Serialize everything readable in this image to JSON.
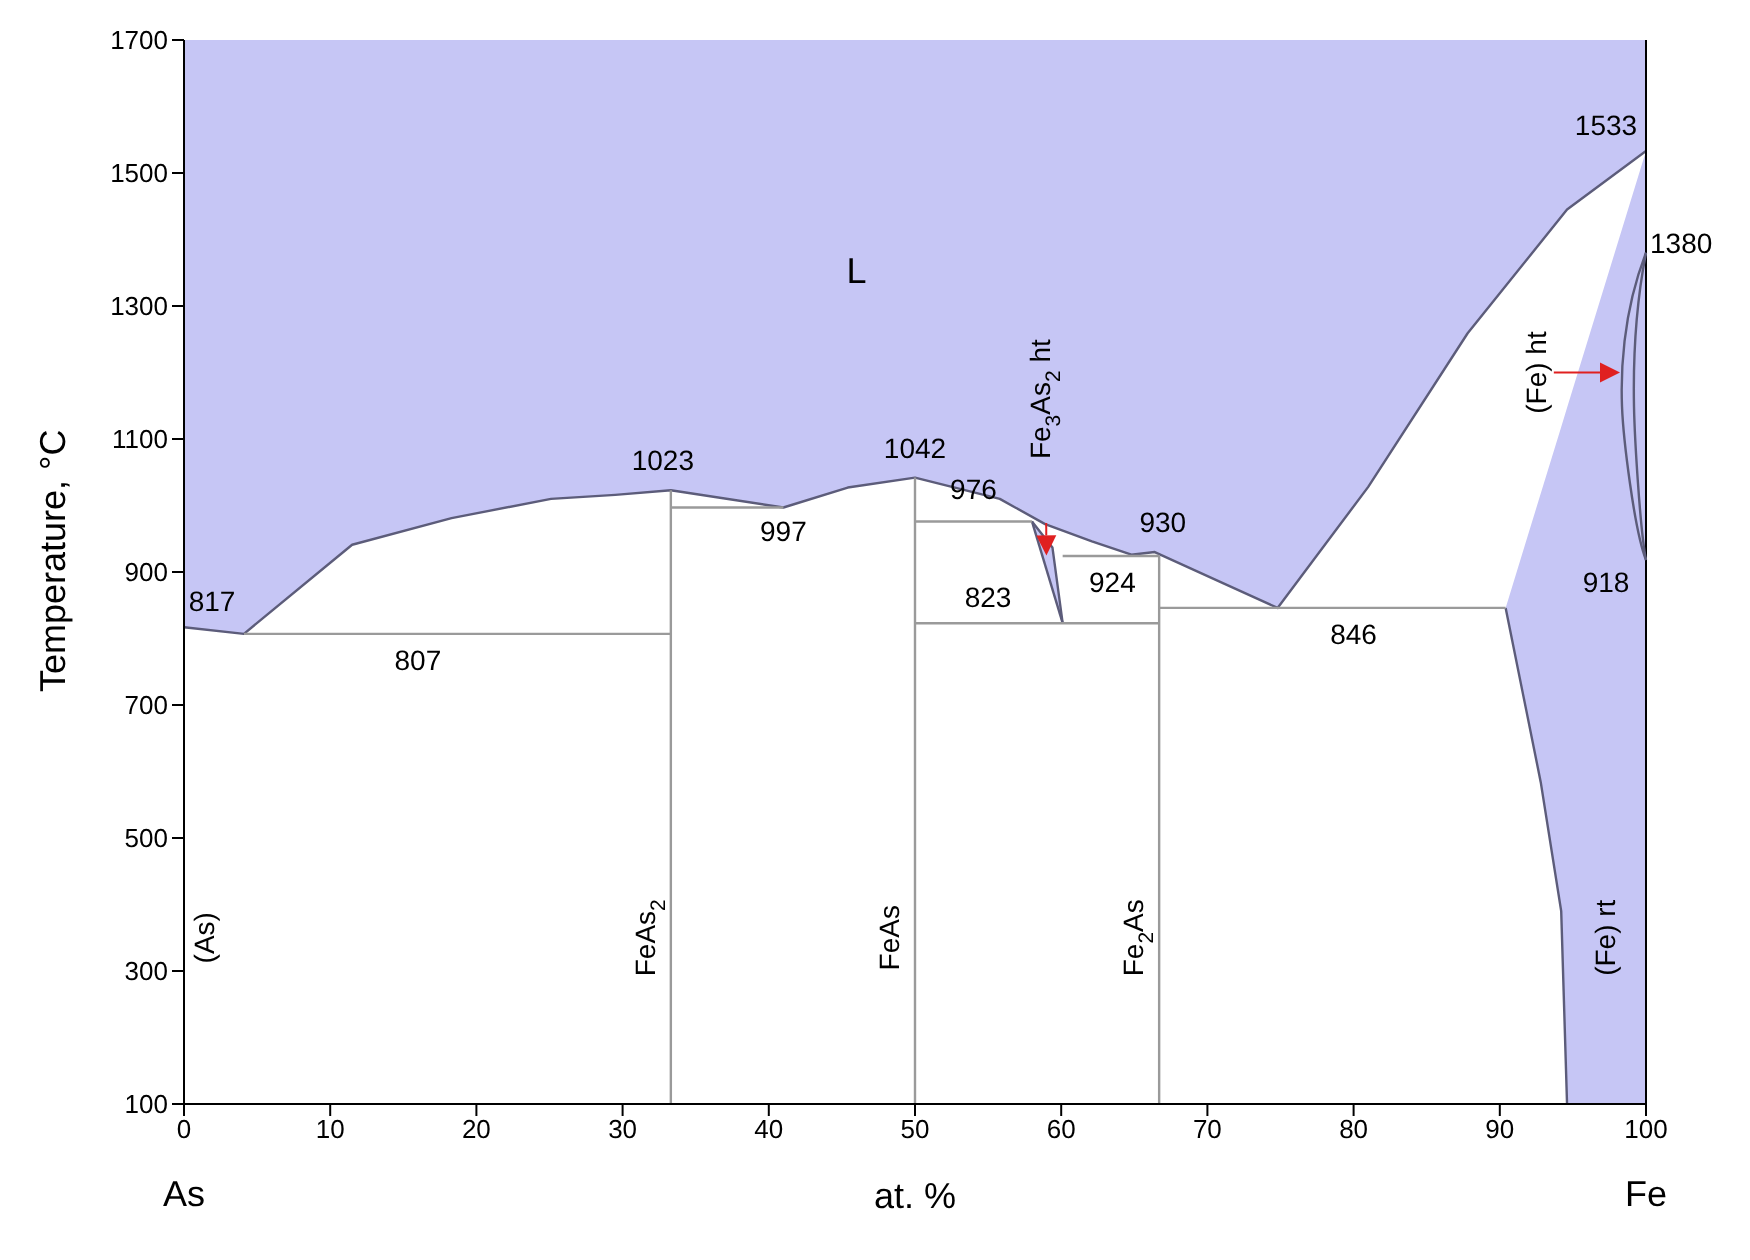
{
  "chart_data": {
    "type": "line",
    "xlabel": "at. %",
    "ylabel": "Temperature, °C",
    "xlim": [
      0,
      100
    ],
    "xticks": [
      0,
      10,
      20,
      30,
      40,
      50,
      60,
      70,
      80,
      90,
      100
    ],
    "ylim": [
      100,
      1700
    ],
    "yticks": [
      100,
      300,
      500,
      700,
      900,
      1100,
      1300,
      1500,
      1700
    ],
    "marker": "none",
    "line_style": "solid",
    "series": [
      {
        "color": "#5c5c7a",
        "x": [
          0,
          4.1,
          11.5,
          18.3,
          25.1,
          29.5,
          33.3,
          41,
          45.4,
          50,
          55.8,
          58.9,
          62.1,
          64.8,
          66.4,
          71.1,
          74.8,
          81,
          87.8,
          94.6,
          100
        ],
        "values": [
          817,
          807,
          941,
          981,
          1010,
          1016,
          1023,
          997,
          1027,
          1042,
          1010,
          972,
          946,
          926,
          930,
          883,
          846,
          1028,
          1259,
          1445,
          1533
        ]
      },
      {
        "type": "area",
        "color": "#c6c6f5",
        "x": [
          90.4,
          92.8,
          94.2,
          94.6,
          100
        ],
        "values": [
          846,
          1018,
          1118,
          1147,
          1533
        ]
      },
      {
        "color": "#5c5c7a",
        "x": [
          90.4,
          92.8,
          94.2,
          94.6
        ],
        "values": [
          846,
          584,
          390,
          100
        ]
      },
      {
        "color": "#5c5c7a",
        "x": [
          58,
          60.1
        ],
        "values": [
          976,
          823
        ]
      },
      {
        "color": "#5c5c7a",
        "x": [
          58,
          59.4,
          60.1
        ],
        "values": [
          976,
          937,
          823
        ]
      },
      {
        "color": "#9a9a9a",
        "x": [
          4.1,
          33.3
        ],
        "values": [
          807,
          807
        ]
      },
      {
        "color": "#9a9a9a",
        "x": [
          33.3,
          41
        ],
        "values": [
          997,
          997
        ]
      },
      {
        "color": "#9a9a9a",
        "x": [
          50,
          58
        ],
        "values": [
          976,
          976
        ]
      },
      {
        "color": "#9a9a9a",
        "x": [
          50,
          66.7
        ],
        "values": [
          823,
          823
        ]
      },
      {
        "color": "#9a9a9a",
        "x": [
          60.1,
          66.7
        ],
        "values": [
          924,
          924
        ]
      },
      {
        "color": "#9a9a9a",
        "x": [
          66.7,
          90.4
        ],
        "values": [
          846,
          846
        ]
      },
      {
        "color": "#9a9a9a",
        "x": [
          33.3,
          33.3
        ],
        "values": [
          100,
          1023
        ]
      },
      {
        "color": "#9a9a9a",
        "x": [
          50,
          50
        ],
        "values": [
          100,
          1042
        ]
      },
      {
        "color": "#9a9a9a",
        "x": [
          66.7,
          66.7
        ],
        "values": [
          100,
          924
        ]
      }
    ],
    "annotations": [
      "L",
      {
        "text": "817",
        "x": 0,
        "y": 817
      },
      {
        "text": "807",
        "x": 16,
        "y": 807
      },
      {
        "text": "1023",
        "x": 33.3,
        "y": 1023
      },
      {
        "text": "997",
        "x": 41,
        "y": 997
      },
      {
        "text": "1042",
        "x": 50,
        "y": 1042
      },
      {
        "text": "976",
        "x": 54,
        "y": 976
      },
      {
        "text": "930",
        "x": 66.4,
        "y": 930
      },
      {
        "text": "924",
        "x": 63.5,
        "y": 924
      },
      {
        "text": "823",
        "x": 55,
        "y": 823
      },
      {
        "text": "846",
        "x": 80,
        "y": 846
      },
      {
        "text": "1533",
        "x": 100,
        "y": 1533
      },
      {
        "text": "1380",
        "x": 100,
        "y": 1380
      },
      {
        "text": "918",
        "x": 100,
        "y": 918
      },
      "(As)",
      {
        "text": "FeAs$_{2}$",
        "x": 33.3,
        "y": 350
      },
      {
        "text": "FeAs",
        "x": 50,
        "y": 350
      },
      {
        "text": "Fe$_{2}$As",
        "x": 66.7,
        "y": 350
      },
      "(Fe) rt",
      "(Fe) ht",
      "Fe$_{3}$As$_{2}$ ht",
      "As",
      "Fe"
    ]
  }
}
